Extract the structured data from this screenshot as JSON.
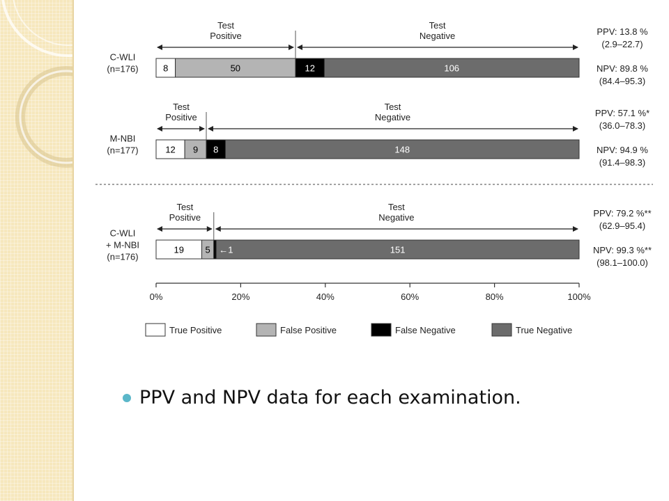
{
  "slide": {
    "bullet": "PPV and NPV data for each examination."
  },
  "colors": {
    "true_positive": "#ffffff",
    "false_positive": "#b4b4b4",
    "false_negative": "#000000",
    "true_negative": "#6c6c6c",
    "bullet": "#5bb7c9",
    "sidebar": "#f6e7bd"
  },
  "chart_data": {
    "type": "bar",
    "orientation": "horizontal",
    "stacked": "percent",
    "xlim": [
      0,
      100
    ],
    "x_ticks": [
      "0%",
      "20%",
      "40%",
      "60%",
      "80%",
      "100%"
    ],
    "legend_position": "bottom",
    "series_names": [
      "True Positive",
      "False Positive",
      "False Negative",
      "True Negative"
    ],
    "rows": [
      {
        "label_lines": [
          "C-WLI",
          "(n=176)"
        ],
        "values": [
          8,
          50,
          12,
          106
        ],
        "total": 176,
        "value_labels": [
          "8",
          "50",
          "12",
          "106"
        ],
        "positive_label": [
          "Test",
          "Positive"
        ],
        "negative_label": [
          "Test",
          "Negative"
        ],
        "ppv": "PPV: 13.8 %",
        "ppv_ci": "(2.9–22.7)",
        "npv": "NPV: 89.8 %",
        "npv_ci": "(84.4–95.3)"
      },
      {
        "label_lines": [
          "M-NBI",
          "(n=177)"
        ],
        "values": [
          12,
          9,
          8,
          148
        ],
        "total": 177,
        "value_labels": [
          "12",
          "9",
          "8",
          "148"
        ],
        "positive_label": [
          "Test",
          "Positive"
        ],
        "negative_label": [
          "Test",
          "Negative"
        ],
        "ppv": "PPV: 57.1 %*",
        "ppv_ci": "(36.0–78.3)",
        "npv": "NPV: 94.9 %",
        "npv_ci": "(91.4–98.3)"
      },
      {
        "label_lines": [
          "C-WLI",
          "+ M-NBI",
          "(n=176)"
        ],
        "values": [
          19,
          5,
          1,
          151
        ],
        "total": 176,
        "value_labels": [
          "19",
          "5",
          "←1",
          "151"
        ],
        "positive_label": [
          "Test",
          "Positive"
        ],
        "negative_label": [
          "Test",
          "Negative"
        ],
        "ppv": "PPV: 79.2 %**",
        "ppv_ci": "(62.9–95.4)",
        "npv": "NPV: 99.3 %**",
        "npv_ci": "(98.1–100.0)"
      }
    ]
  }
}
